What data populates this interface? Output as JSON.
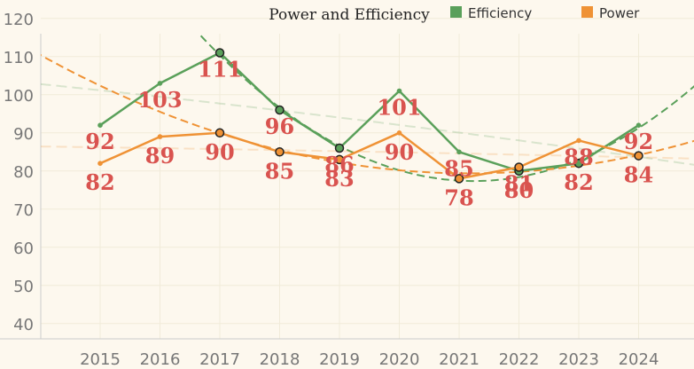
{
  "chart_data": {
    "type": "line",
    "title": "Power and Efficiency",
    "x": [
      "2015",
      "2016",
      "2017",
      "2018",
      "2019",
      "2020",
      "2021",
      "2022",
      "2023",
      "2024"
    ],
    "ylim": [
      36,
      122
    ],
    "yticks": [
      40,
      50,
      60,
      70,
      80,
      90,
      100,
      110,
      120
    ],
    "grid": true,
    "legend_position": "top-right",
    "series": [
      {
        "name": "Efficiency",
        "color": "#5aa05a",
        "values": [
          92,
          103,
          111,
          96,
          86,
          101,
          85,
          80,
          82,
          92
        ],
        "labels": [
          "92",
          "103",
          "111",
          "96",
          "86",
          "101",
          "85",
          "80",
          "82",
          "92"
        ],
        "highlight_indices": [
          2,
          3,
          4,
          7,
          8
        ]
      },
      {
        "name": "Power",
        "color": "#ef9235",
        "values": [
          82,
          89,
          90,
          85,
          83,
          90,
          78,
          81,
          88,
          84
        ],
        "labels": [
          "82",
          "89",
          "90",
          "85",
          "83",
          "90",
          "78",
          "81",
          "88",
          "84"
        ],
        "highlight_indices": [
          2,
          3,
          4,
          6,
          7,
          9
        ]
      }
    ]
  }
}
